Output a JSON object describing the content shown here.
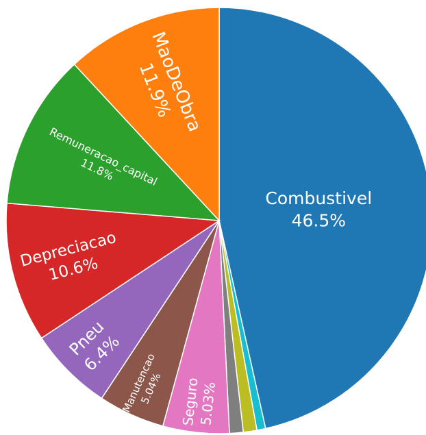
{
  "chart_data": {
    "type": "pie",
    "labels": [
      "Combustivel",
      null,
      null,
      null,
      "Seguro",
      "Manutencao",
      "Pneu",
      "Depreciacao",
      "Remuneracao_capital",
      "MaoDeObra"
    ],
    "values": [
      46.5,
      0.66,
      1.03,
      1.04,
      5.03,
      5.04,
      6.4,
      10.6,
      11.8,
      11.9
    ],
    "value_labels": [
      "46.5%",
      null,
      null,
      null,
      "5.03%",
      "5.04%",
      "6.4%",
      "10.6%",
      "11.8%",
      "11.9%"
    ],
    "colors": [
      "#1f77b4",
      "#17becf",
      "#bcbd22",
      "#7f7f7f",
      "#e377c2",
      "#8c564b",
      "#9467bd",
      "#d62728",
      "#2ca02c",
      "#ff7f0e"
    ],
    "direction": "clockwise"
  }
}
